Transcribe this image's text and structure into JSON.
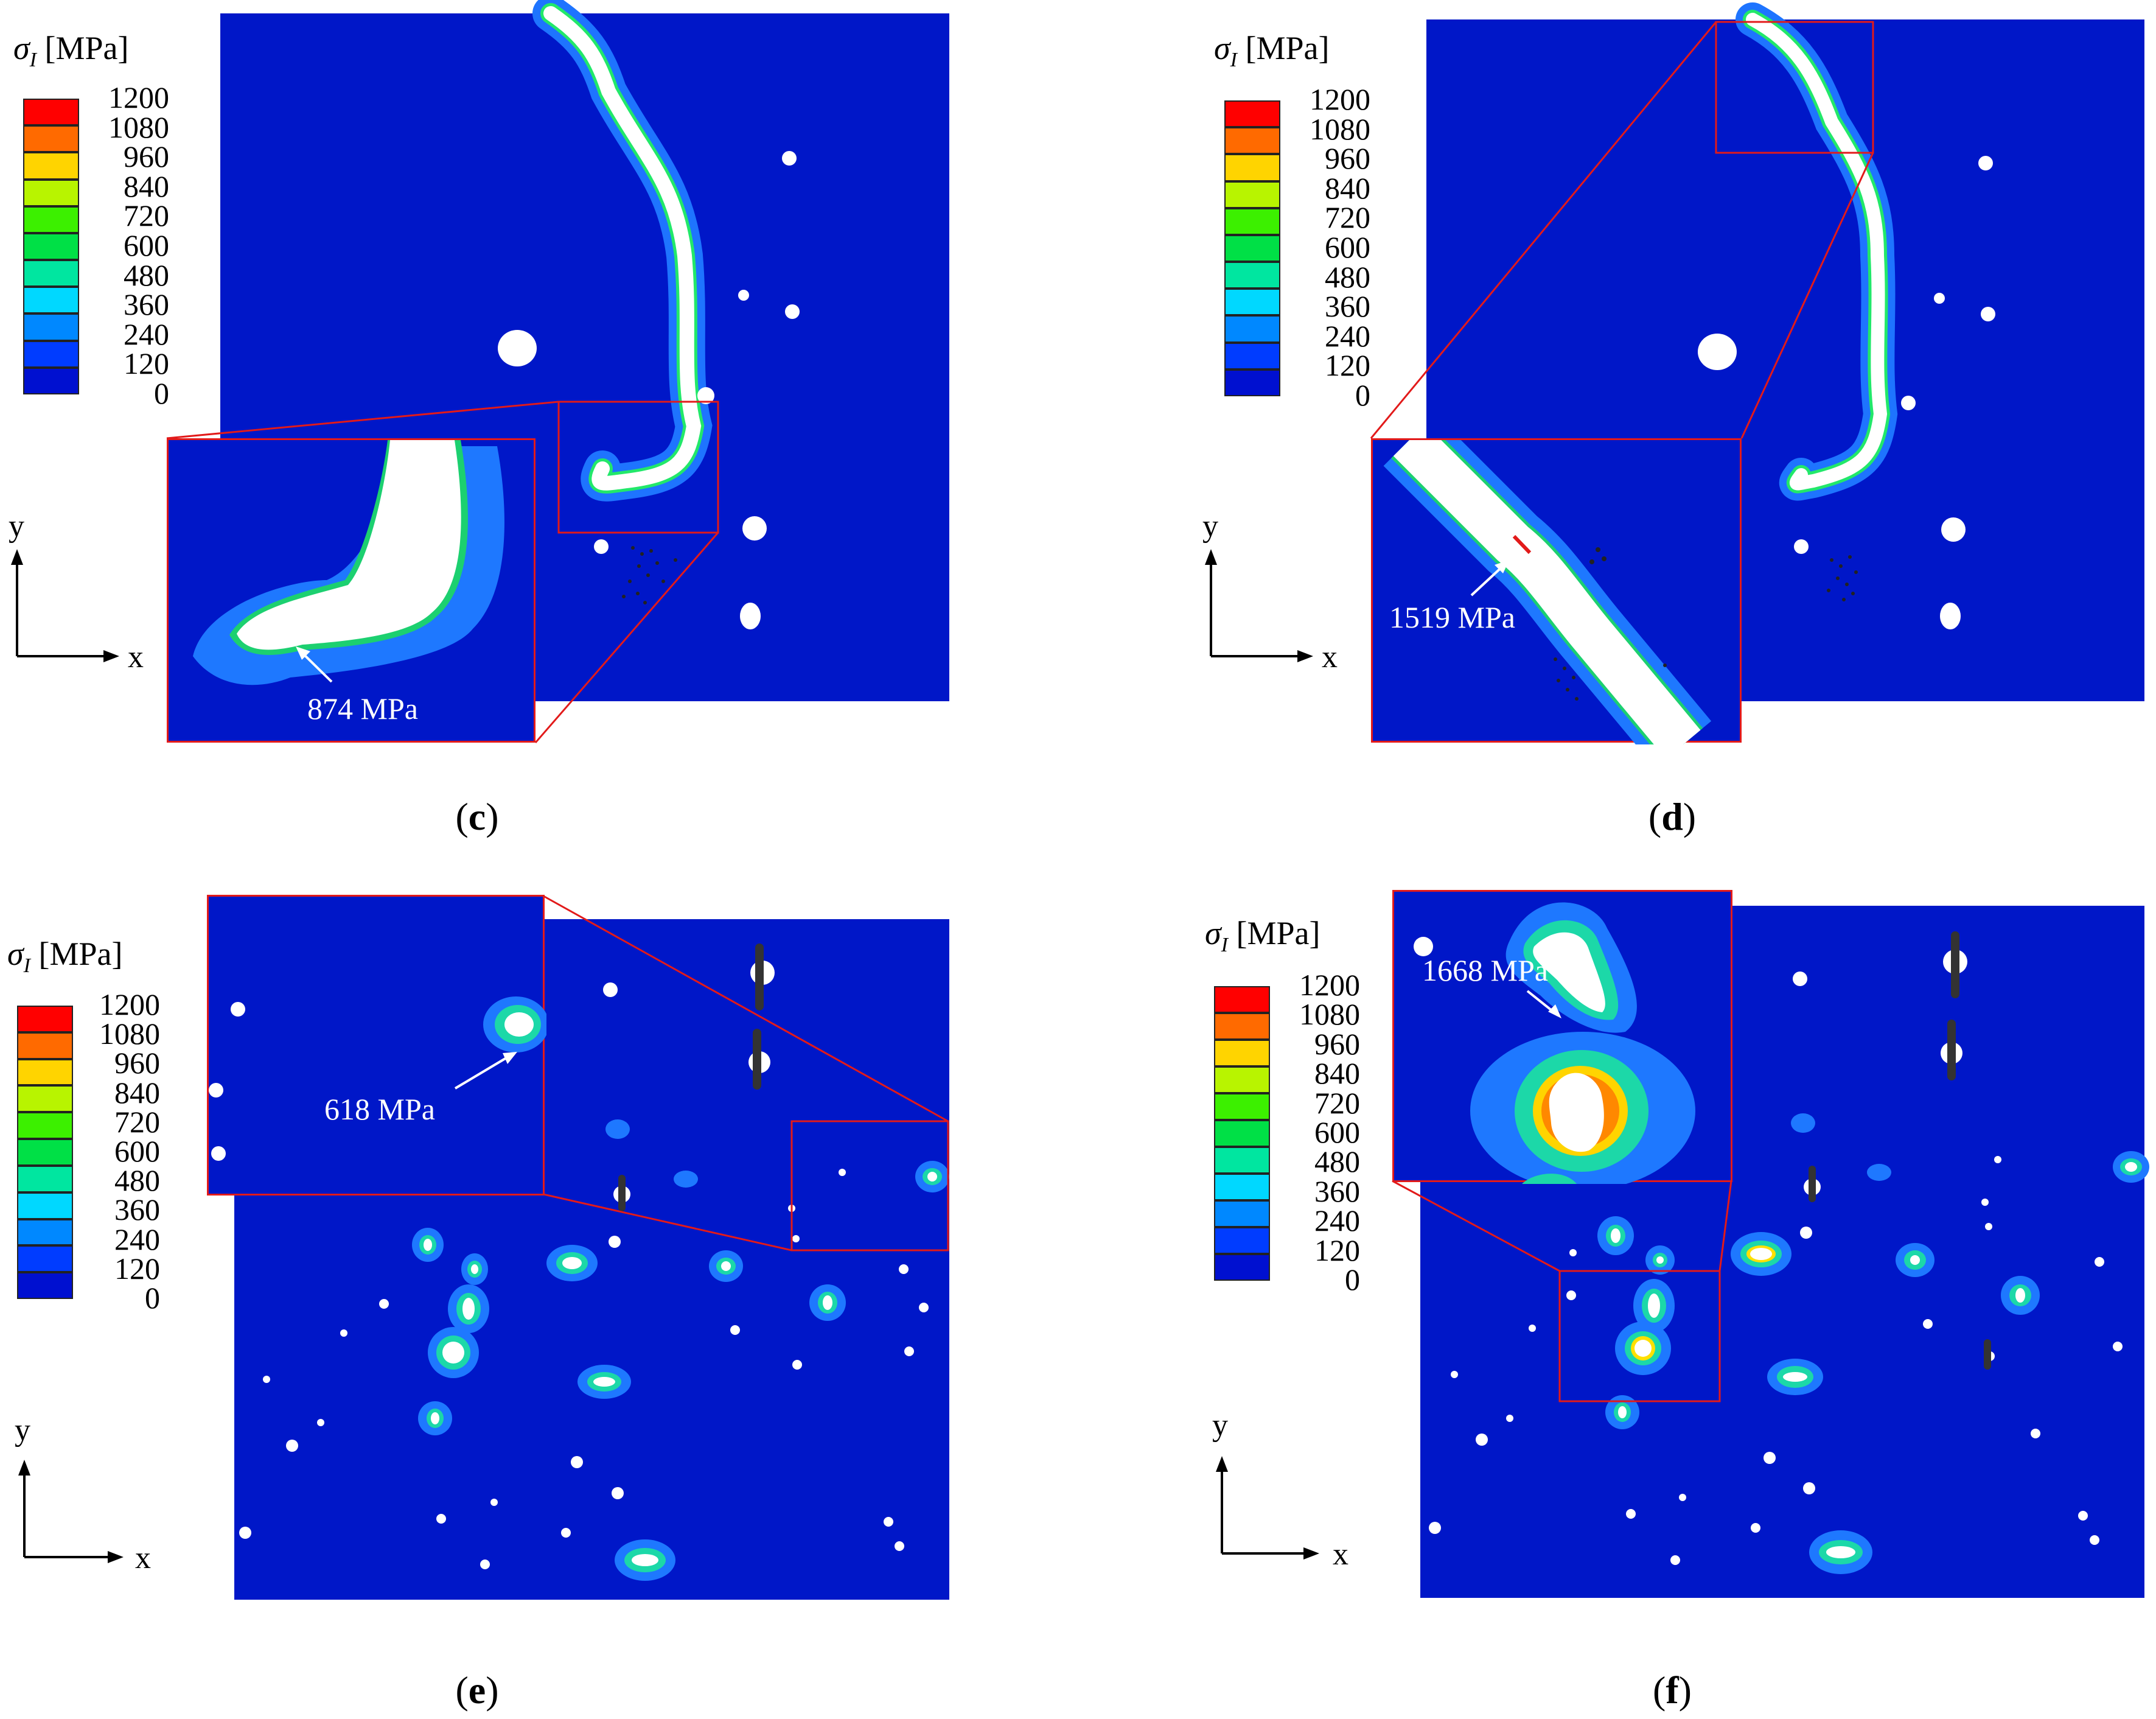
{
  "legend": {
    "symbol": "σ",
    "subscript": "I",
    "unit": "[MPa]",
    "ticks": [
      "1200",
      "1080",
      "960",
      "840",
      "720",
      "600",
      "480",
      "360",
      "240",
      "120",
      "0"
    ],
    "colors": [
      "#ff0000",
      "#ff6a00",
      "#ffd400",
      "#b8f400",
      "#3cf000",
      "#00e046",
      "#00e6a0",
      "#00d8ff",
      "#0088ff",
      "#003cff",
      "#0010d0"
    ]
  },
  "axes": {
    "x": "x",
    "y": "y"
  },
  "panels": [
    {
      "caption_open": "(",
      "caption_letter": "c",
      "caption_close": ")",
      "annotation": "874 MPa"
    },
    {
      "caption_open": "(",
      "caption_letter": "d",
      "caption_close": ")",
      "annotation": "1519 MPa"
    },
    {
      "caption_open": "(",
      "caption_letter": "e",
      "caption_close": ")",
      "annotation": "618 MPa"
    },
    {
      "caption_open": "(",
      "caption_letter": "f",
      "caption_close": ")",
      "annotation": "1668 MPa"
    }
  ]
}
